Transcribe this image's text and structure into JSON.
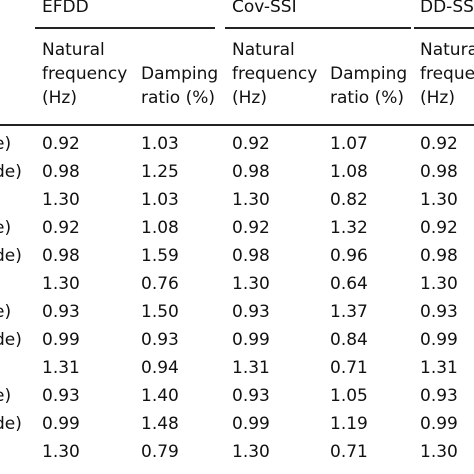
{
  "groups": [
    {
      "label": "EFDD"
    },
    {
      "label": "Cov-SSI"
    },
    {
      "label": "DD-SS"
    }
  ],
  "subheaders": {
    "nf": [
      "Natural",
      "frequency",
      "(Hz)"
    ],
    "nf_cut": [
      "Natura",
      "freque",
      "(Hz)"
    ],
    "dr": [
      "Damping",
      "ratio (%)"
    ]
  },
  "rows": [
    {
      "label": "e)",
      "c": [
        "0.92",
        "1.03",
        "0.92",
        "1.07",
        "0.92"
      ]
    },
    {
      "label": "de)",
      "c": [
        "0.98",
        "1.25",
        "0.98",
        "1.08",
        "0.98"
      ]
    },
    {
      "label": "",
      "c": [
        "1.30",
        "1.03",
        "1.30",
        "0.82",
        "1.30"
      ]
    },
    {
      "label": "e)",
      "c": [
        "0.92",
        "1.08",
        "0.92",
        "1.32",
        "0.92"
      ]
    },
    {
      "label": "de)",
      "c": [
        "0.98",
        "1.59",
        "0.98",
        "0.96",
        "0.98"
      ]
    },
    {
      "label": "",
      "c": [
        "1.30",
        "0.76",
        "1.30",
        "0.64",
        "1.30"
      ]
    },
    {
      "label": "e)",
      "c": [
        "0.93",
        "1.50",
        "0.93",
        "1.37",
        "0.93"
      ]
    },
    {
      "label": "de)",
      "c": [
        "0.99",
        "0.93",
        "0.99",
        "0.84",
        "0.99"
      ]
    },
    {
      "label": "",
      "c": [
        "1.31",
        "0.94",
        "1.31",
        "0.71",
        "1.31"
      ]
    },
    {
      "label": "e)",
      "c": [
        "0.93",
        "1.40",
        "0.93",
        "1.05",
        "0.93"
      ]
    },
    {
      "label": "de)",
      "c": [
        "0.99",
        "1.48",
        "0.99",
        "1.19",
        "0.99"
      ]
    },
    {
      "label": "",
      "c": [
        "1.30",
        "0.79",
        "1.30",
        "0.71",
        "1.30"
      ]
    }
  ]
}
